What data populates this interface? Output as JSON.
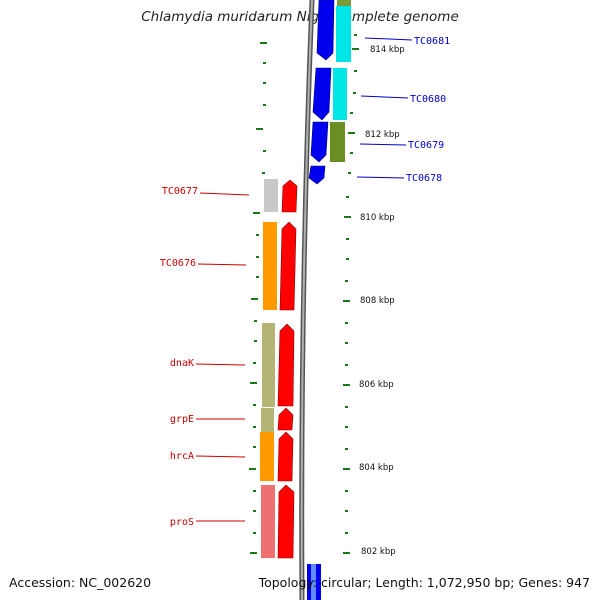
{
  "title": "Chlamydia muridarum Nigg, complete genome",
  "footer": {
    "accession": "Accession: NC_002620",
    "summary": "Topology: circular; Length: 1,072,950 bp; Genes: 947"
  },
  "colors": {
    "plus_strand_labels": "#0000cc",
    "minus_strand_labels": "#cc0000",
    "backbone": "#808080",
    "ticks": "#1a7a1a"
  },
  "kbp_labels": [
    "814 kbp",
    "812 kbp",
    "810 kbp",
    "808 kbp",
    "806 kbp",
    "804 kbp",
    "802 kbp"
  ],
  "plus_genes": [
    "TC0681",
    "TC0680",
    "TC0679",
    "TC0678"
  ],
  "minus_genes": [
    "TC0677",
    "TC0676",
    "dnaK",
    "grpE",
    "hrcA",
    "proS"
  ]
}
